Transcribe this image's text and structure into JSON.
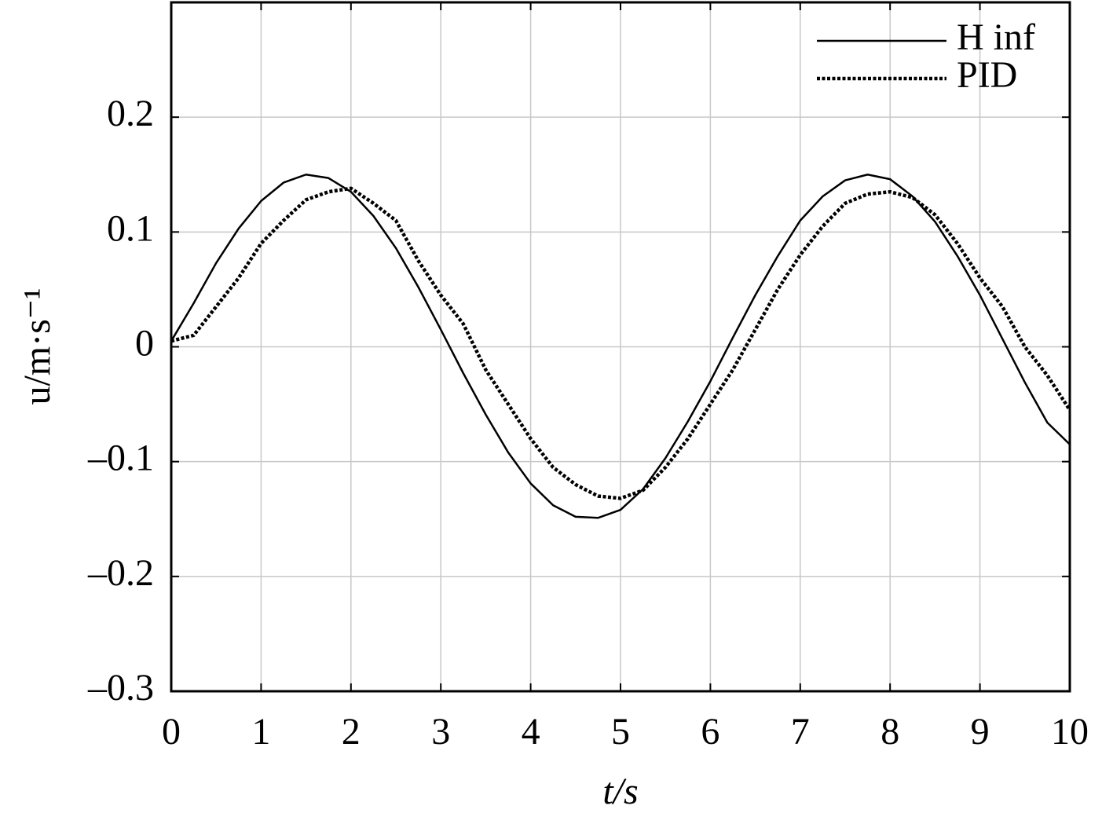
{
  "chart_data": {
    "type": "line",
    "xlabel": "t/s",
    "ylabel": "u/m·s⁻¹",
    "x": [
      0,
      0.25,
      0.5,
      0.75,
      1,
      1.25,
      1.5,
      1.75,
      2,
      2.25,
      2.5,
      2.75,
      3,
      3.25,
      3.5,
      3.75,
      4,
      4.25,
      4.5,
      4.75,
      5,
      5.25,
      5.5,
      5.75,
      6,
      6.25,
      6.5,
      6.75,
      7,
      7.25,
      7.5,
      7.75,
      8,
      8.25,
      8.5,
      8.75,
      9,
      9.25,
      9.5,
      9.75,
      10
    ],
    "series": [
      {
        "name": "H inf",
        "color": "#000000",
        "linestyle": "solid",
        "values": [
          0.005,
          0.038,
          0.073,
          0.103,
          0.127,
          0.143,
          0.15,
          0.147,
          0.135,
          0.114,
          0.086,
          0.052,
          0.015,
          -0.023,
          -0.059,
          -0.092,
          -0.119,
          -0.138,
          -0.148,
          -0.149,
          -0.142,
          -0.124,
          -0.097,
          -0.065,
          -0.03,
          0.008,
          0.045,
          0.079,
          0.11,
          0.131,
          0.145,
          0.15,
          0.146,
          0.131,
          0.109,
          0.079,
          0.045,
          0.007,
          -0.031,
          -0.066,
          -0.085
        ]
      },
      {
        "name": "PID",
        "color": "#000000",
        "linestyle": "dotted",
        "values": [
          0.005,
          0.01,
          0.035,
          0.06,
          0.09,
          0.11,
          0.128,
          0.135,
          0.138,
          0.125,
          0.11,
          0.075,
          0.045,
          0.02,
          -0.02,
          -0.05,
          -0.08,
          -0.105,
          -0.12,
          -0.13,
          -0.132,
          -0.125,
          -0.105,
          -0.08,
          -0.05,
          -0.02,
          0.015,
          0.05,
          0.08,
          0.105,
          0.125,
          0.133,
          0.135,
          0.13,
          0.115,
          0.09,
          0.06,
          0.035,
          0.0,
          -0.025,
          -0.055
        ]
      }
    ],
    "xlim": [
      0,
      10
    ],
    "xticks": [
      0,
      1,
      2,
      3,
      4,
      5,
      6,
      7,
      8,
      9,
      10
    ],
    "ylim": [
      -0.3,
      0.3
    ],
    "yticks": [
      {
        "value": -0.3,
        "label": "–0.3"
      },
      {
        "value": -0.2,
        "label": "–0.2"
      },
      {
        "value": -0.1,
        "label": "–0.1"
      },
      0,
      0.1,
      0.2
    ],
    "grid": true,
    "legend": "upper right"
  }
}
